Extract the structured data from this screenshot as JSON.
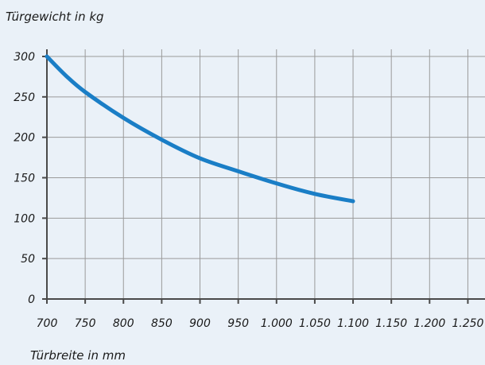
{
  "chart_data": {
    "type": "line",
    "title": "",
    "ylabel": "Türgewicht in kg",
    "xlabel": "Türbreite in mm",
    "x_ticks": [
      700,
      750,
      800,
      850,
      900,
      950,
      1000,
      1050,
      1100,
      1150,
      1200,
      1250
    ],
    "x_tick_labels": [
      "700",
      "750",
      "800",
      "850",
      "900",
      "950",
      "1.000",
      "1.050",
      "1.100",
      "1.150",
      "1.200",
      "1.250"
    ],
    "y_ticks": [
      0,
      50,
      100,
      150,
      200,
      250,
      300
    ],
    "y_tick_labels": [
      "0",
      "50",
      "100",
      "150",
      "200",
      "250",
      "300"
    ],
    "xlim": [
      700,
      1275
    ],
    "ylim": [
      0,
      300
    ],
    "grid": true,
    "series": [
      {
        "color": "#1a7ec6",
        "x": [
          700,
          725,
          750,
          800,
          850,
          900,
          950,
          1000,
          1050,
          1100
        ],
        "y": [
          300,
          276,
          256,
          224,
          197,
          174,
          158,
          143,
          130,
          121
        ]
      }
    ]
  }
}
